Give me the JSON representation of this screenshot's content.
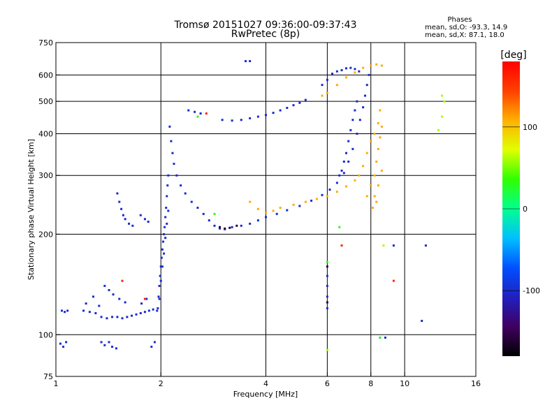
{
  "chart_data": {
    "type": "scatter",
    "title": "Tromsø 20151027 09:36:00-09:37:43",
    "subtitle": "RwPretec (8p)",
    "xlabel": "Frequency [MHz]",
    "ylabel": "Stationary phase Virtual Height [km]",
    "x_scale": "log",
    "y_scale": "log",
    "xlim": [
      1,
      16
    ],
    "ylim": [
      75,
      750
    ],
    "x_ticks": [
      1,
      2,
      4,
      6,
      8,
      10,
      16
    ],
    "y_ticks": [
      75,
      100,
      200,
      300,
      400,
      500,
      600,
      750
    ],
    "grid_x": [
      2,
      4,
      6,
      8,
      10
    ],
    "grid_y": [
      100,
      200,
      300,
      400,
      500,
      600
    ],
    "grid": true,
    "phases_box": {
      "heading": "Phases",
      "line_o": "mean, sd,O: -93.3, 14.9",
      "line_x": "mean, sd,X:  87.1, 18.0"
    },
    "colorbar": {
      "label": "[deg]",
      "ticks": [
        100,
        0,
        -100
      ],
      "range": [
        -180,
        180
      ],
      "colormap": [
        "#000000",
        "#400060",
        "#2020c0",
        "#0050ff",
        "#00c0ff",
        "#00ff90",
        "#30ff00",
        "#e0ff00",
        "#ffb000",
        "#ff4000",
        "#ff0000"
      ]
    },
    "series": [
      {
        "color_phase": -100,
        "points": [
          [
            1.04,
            118
          ],
          [
            1.06,
            117
          ],
          [
            1.08,
            118
          ],
          [
            1.03,
            94
          ],
          [
            1.05,
            92
          ],
          [
            1.07,
            95
          ],
          [
            1.2,
            118
          ],
          [
            1.25,
            117
          ],
          [
            1.3,
            116
          ],
          [
            1.35,
            113
          ],
          [
            1.4,
            112
          ],
          [
            1.45,
            113
          ],
          [
            1.5,
            113
          ],
          [
            1.55,
            112
          ],
          [
            1.6,
            113
          ],
          [
            1.65,
            114
          ],
          [
            1.7,
            115
          ],
          [
            1.75,
            116
          ],
          [
            1.8,
            117
          ],
          [
            1.85,
            118
          ],
          [
            1.9,
            119
          ],
          [
            1.95,
            118
          ],
          [
            1.22,
            124
          ],
          [
            1.28,
            130
          ],
          [
            1.33,
            122
          ],
          [
            1.38,
            140
          ],
          [
            1.42,
            136
          ],
          [
            1.46,
            132
          ],
          [
            1.52,
            128
          ],
          [
            1.58,
            125
          ],
          [
            1.76,
            124
          ],
          [
            1.82,
            128
          ],
          [
            1.35,
            95
          ],
          [
            1.38,
            93
          ],
          [
            1.42,
            95
          ],
          [
            1.45,
            92
          ],
          [
            1.49,
            91
          ],
          [
            1.88,
            92
          ],
          [
            1.92,
            95
          ],
          [
            1.5,
            265
          ],
          [
            1.52,
            250
          ],
          [
            1.54,
            238
          ],
          [
            1.56,
            228
          ],
          [
            1.58,
            222
          ],
          [
            1.62,
            215
          ],
          [
            1.66,
            212
          ],
          [
            1.75,
            228
          ],
          [
            1.8,
            222
          ],
          [
            1.84,
            218
          ],
          [
            1.96,
            120
          ],
          [
            1.97,
            130
          ],
          [
            1.98,
            140
          ],
          [
            1.99,
            150
          ],
          [
            2.0,
            160
          ],
          [
            2.01,
            170
          ],
          [
            2.02,
            180
          ],
          [
            2.03,
            190
          ],
          [
            2.04,
            200
          ],
          [
            2.05,
            210
          ],
          [
            2.06,
            225
          ],
          [
            2.07,
            240
          ],
          [
            2.08,
            260
          ],
          [
            2.09,
            280
          ],
          [
            2.1,
            300
          ],
          [
            1.98,
            128
          ],
          [
            2.0,
            145
          ],
          [
            2.02,
            160
          ],
          [
            2.04,
            175
          ],
          [
            2.06,
            195
          ],
          [
            2.08,
            215
          ],
          [
            2.1,
            235
          ],
          [
            2.12,
            420
          ],
          [
            2.14,
            380
          ],
          [
            2.16,
            350
          ],
          [
            2.18,
            325
          ],
          [
            2.22,
            300
          ],
          [
            2.28,
            280
          ],
          [
            2.35,
            265
          ],
          [
            2.45,
            250
          ],
          [
            2.55,
            240
          ],
          [
            2.65,
            230
          ],
          [
            2.75,
            220
          ],
          [
            2.85,
            212
          ],
          [
            2.95,
            208
          ],
          [
            3.05,
            207
          ],
          [
            3.2,
            210
          ],
          [
            3.4,
            212
          ],
          [
            3.6,
            215
          ],
          [
            3.8,
            220
          ],
          [
            4.0,
            225
          ],
          [
            4.3,
            230
          ],
          [
            4.6,
            236
          ],
          [
            5.0,
            243
          ],
          [
            5.4,
            252
          ],
          [
            5.8,
            262
          ],
          [
            6.1,
            272
          ],
          [
            6.4,
            285
          ],
          [
            6.7,
            305
          ],
          [
            6.9,
            330
          ],
          [
            7.1,
            360
          ],
          [
            7.3,
            400
          ],
          [
            7.45,
            440
          ],
          [
            7.6,
            480
          ],
          [
            7.7,
            520
          ],
          [
            7.8,
            560
          ],
          [
            7.9,
            600
          ],
          [
            2.4,
            470
          ],
          [
            2.5,
            465
          ],
          [
            2.6,
            460
          ],
          [
            3.0,
            440
          ],
          [
            3.2,
            438
          ],
          [
            3.4,
            440
          ],
          [
            3.6,
            445
          ],
          [
            3.8,
            450
          ],
          [
            4.0,
            455
          ],
          [
            4.2,
            462
          ],
          [
            4.4,
            470
          ],
          [
            4.6,
            478
          ],
          [
            4.8,
            487
          ],
          [
            5.0,
            495
          ],
          [
            5.2,
            505
          ],
          [
            5.8,
            560
          ],
          [
            6.0,
            580
          ],
          [
            6.2,
            605
          ],
          [
            6.4,
            615
          ],
          [
            6.6,
            620
          ],
          [
            6.8,
            628
          ],
          [
            7.0,
            630
          ],
          [
            7.2,
            625
          ],
          [
            7.4,
            615
          ],
          [
            6.8,
            350
          ],
          [
            6.9,
            380
          ],
          [
            7.0,
            410
          ],
          [
            7.1,
            440
          ],
          [
            7.2,
            470
          ],
          [
            7.3,
            500
          ],
          [
            6.7,
            330
          ],
          [
            6.6,
            310
          ],
          [
            6.5,
            300
          ],
          [
            3.5,
            660
          ],
          [
            3.6,
            660
          ],
          [
            6.0,
            150
          ],
          [
            6.0,
            140
          ],
          [
            6.0,
            130
          ],
          [
            6.0,
            120
          ],
          [
            11.2,
            110
          ],
          [
            9.3,
            185
          ],
          [
            11.5,
            185
          ],
          [
            8.5,
            98
          ],
          [
            8.8,
            98
          ]
        ]
      },
      {
        "color_phase": -160,
        "points": [
          [
            2.95,
            210
          ],
          [
            3.05,
            208
          ],
          [
            3.15,
            209
          ],
          [
            3.3,
            212
          ],
          [
            6.0,
            160
          ],
          [
            6.0,
            125
          ]
        ]
      },
      {
        "color_phase": 110,
        "points": [
          [
            3.6,
            250
          ],
          [
            3.8,
            238
          ],
          [
            4.0,
            232
          ],
          [
            4.2,
            235
          ],
          [
            4.4,
            240
          ],
          [
            4.8,
            245
          ],
          [
            5.2,
            250
          ],
          [
            5.6,
            255
          ],
          [
            6.0,
            260
          ],
          [
            6.4,
            268
          ],
          [
            6.8,
            278
          ],
          [
            7.2,
            290
          ],
          [
            7.4,
            300
          ],
          [
            7.6,
            320
          ],
          [
            7.8,
            350
          ],
          [
            8.0,
            380
          ],
          [
            8.2,
            400
          ],
          [
            8.4,
            430
          ],
          [
            8.5,
            470
          ],
          [
            7.8,
            260
          ],
          [
            8.0,
            280
          ],
          [
            8.2,
            300
          ],
          [
            8.3,
            330
          ],
          [
            8.4,
            360
          ],
          [
            8.5,
            390
          ],
          [
            8.6,
            420
          ],
          [
            5.8,
            520
          ],
          [
            6.0,
            530
          ],
          [
            6.4,
            560
          ],
          [
            6.8,
            590
          ],
          [
            7.2,
            610
          ],
          [
            7.6,
            630
          ],
          [
            8.0,
            640
          ],
          [
            8.3,
            645
          ],
          [
            8.6,
            640
          ],
          [
            8.2,
            260
          ],
          [
            8.4,
            280
          ],
          [
            8.6,
            310
          ],
          [
            8.1,
            240
          ],
          [
            8.3,
            250
          ]
        ]
      },
      {
        "color_phase": 30,
        "points": [
          [
            6.0,
            165
          ],
          [
            6.5,
            210
          ],
          [
            8.5,
            98
          ],
          [
            2.55,
            450
          ],
          [
            2.85,
            230
          ]
        ]
      },
      {
        "color_phase": 160,
        "points": [
          [
            6.6,
            185
          ],
          [
            9.3,
            145
          ],
          [
            2.7,
            460
          ],
          [
            1.55,
            145
          ],
          [
            1.8,
            128
          ]
        ]
      },
      {
        "color_phase": 60,
        "points": [
          [
            12.8,
            520
          ],
          [
            12.8,
            450
          ],
          [
            13.0,
            500
          ],
          [
            12.5,
            410
          ],
          [
            6.0,
            90
          ],
          [
            8.7,
            185
          ]
        ]
      }
    ]
  }
}
